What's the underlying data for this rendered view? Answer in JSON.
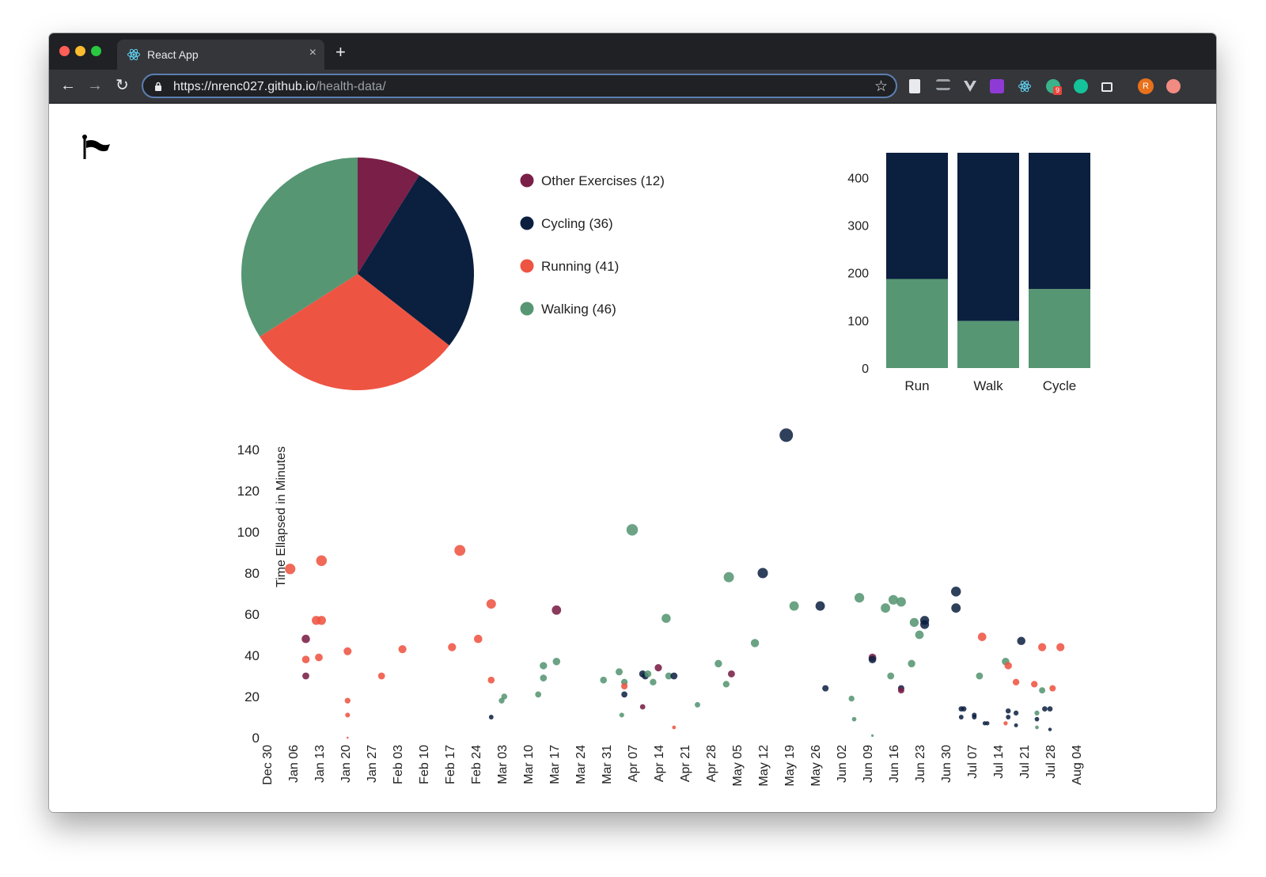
{
  "browser": {
    "tab_title": "React App",
    "tab_close": "×",
    "new_tab": "+",
    "url_host": "https://nrenc027.github.io",
    "url_path": "/health-data/",
    "back": "←",
    "forward": "→",
    "reload": "↻",
    "bookmark": "☆",
    "profile_initial": "R",
    "extension_badge": "9"
  },
  "colors": {
    "other": "#7a1f47",
    "cycling": "#0b1f3f",
    "running": "#ee5442",
    "walking": "#569673"
  },
  "icons": [
    "flag-icon",
    "react-icon",
    "lock-icon",
    "star-icon"
  ],
  "legend": [
    {
      "label": "Other Exercises (12)",
      "key": "other"
    },
    {
      "label": "Cycling (36)",
      "key": "cycling"
    },
    {
      "label": "Running (41)",
      "key": "running"
    },
    {
      "label": "Walking (46)",
      "key": "walking"
    }
  ],
  "chart_data": [
    {
      "type": "pie",
      "slices": [
        {
          "label": "Other Exercises",
          "value": 12,
          "color": "#7a1f47"
        },
        {
          "label": "Cycling",
          "value": 36,
          "color": "#0b1f3f"
        },
        {
          "label": "Running",
          "value": 41,
          "color": "#ee5442"
        },
        {
          "label": "Walking",
          "value": 46,
          "color": "#569673"
        }
      ]
    },
    {
      "type": "bar",
      "stacked": true,
      "categories": [
        "Run",
        "Walk",
        "Cycle"
      ],
      "series": [
        {
          "values": [
            187,
            99,
            166
          ],
          "color": "#569673"
        },
        {
          "values": [
            265,
            353,
            286
          ],
          "color": "#0b1f3f"
        }
      ],
      "yticks": [
        "0",
        "100",
        "200",
        "300",
        "400"
      ],
      "ylim": [
        0,
        452
      ]
    },
    {
      "type": "scatter",
      "ylabel": "Time Ellapsed in Minutes",
      "ylim": [
        0,
        140
      ],
      "yticks": [
        "0",
        "20",
        "40",
        "60",
        "80",
        "100",
        "120",
        "140"
      ],
      "xticks": [
        "Dec 30",
        "Jan 06",
        "Jan 13",
        "Jan 20",
        "Jan 27",
        "Feb 03",
        "Feb 10",
        "Feb 17",
        "Feb 24",
        "Mar 03",
        "Mar 10",
        "Mar 17",
        "Mar 24",
        "Mar 31",
        "Apr 07",
        "Apr 14",
        "Apr 21",
        "Apr 28",
        "May 05",
        "May 12",
        "May 19",
        "May 26",
        "Jun 02",
        "Jun 09",
        "Jun 16",
        "Jun 23",
        "Jun 30",
        "Jul 07",
        "Jul 14",
        "Jul 21",
        "Jul 28",
        "Aug 04"
      ],
      "points": [
        {
          "x": 0.9,
          "y": 82,
          "k": "running"
        },
        {
          "x": 1.5,
          "y": 48,
          "k": "other"
        },
        {
          "x": 1.5,
          "y": 38,
          "k": "running"
        },
        {
          "x": 1.5,
          "y": 30,
          "k": "other"
        },
        {
          "x": 1.9,
          "y": 57,
          "k": "running"
        },
        {
          "x": 2.0,
          "y": 39,
          "k": "running"
        },
        {
          "x": 2.1,
          "y": 57,
          "k": "running"
        },
        {
          "x": 2.1,
          "y": 86,
          "k": "running"
        },
        {
          "x": 3.1,
          "y": 42,
          "k": "running"
        },
        {
          "x": 3.1,
          "y": 18,
          "k": "running"
        },
        {
          "x": 3.1,
          "y": 11,
          "k": "running"
        },
        {
          "x": 3.1,
          "y": 0,
          "k": "running"
        },
        {
          "x": 4.4,
          "y": 30,
          "k": "running"
        },
        {
          "x": 5.2,
          "y": 43,
          "k": "running"
        },
        {
          "x": 7.1,
          "y": 44,
          "k": "running"
        },
        {
          "x": 7.4,
          "y": 91,
          "k": "running"
        },
        {
          "x": 8.1,
          "y": 48,
          "k": "running"
        },
        {
          "x": 8.6,
          "y": 28,
          "k": "running"
        },
        {
          "x": 8.6,
          "y": 10,
          "k": "cycling"
        },
        {
          "x": 8.6,
          "y": 65,
          "k": "running"
        },
        {
          "x": 9.0,
          "y": 18,
          "k": "walking"
        },
        {
          "x": 9.1,
          "y": 20,
          "k": "walking"
        },
        {
          "x": 10.4,
          "y": 21,
          "k": "walking"
        },
        {
          "x": 10.6,
          "y": 35,
          "k": "walking"
        },
        {
          "x": 10.6,
          "y": 29,
          "k": "walking"
        },
        {
          "x": 11.1,
          "y": 37,
          "k": "walking"
        },
        {
          "x": 11.1,
          "y": 62,
          "k": "other"
        },
        {
          "x": 12.9,
          "y": 28,
          "k": "walking"
        },
        {
          "x": 13.5,
          "y": 32,
          "k": "walking"
        },
        {
          "x": 13.6,
          "y": 11,
          "k": "walking"
        },
        {
          "x": 13.7,
          "y": 27,
          "k": "walking"
        },
        {
          "x": 13.7,
          "y": 25,
          "k": "running"
        },
        {
          "x": 13.7,
          "y": 21,
          "k": "cycling"
        },
        {
          "x": 14.0,
          "y": 101,
          "k": "walking"
        },
        {
          "x": 14.4,
          "y": 31,
          "k": "cycling"
        },
        {
          "x": 14.5,
          "y": 30,
          "k": "cycling"
        },
        {
          "x": 14.6,
          "y": 31,
          "k": "walking"
        },
        {
          "x": 14.4,
          "y": 15,
          "k": "other"
        },
        {
          "x": 14.8,
          "y": 27,
          "k": "walking"
        },
        {
          "x": 15.0,
          "y": 34,
          "k": "other"
        },
        {
          "x": 15.3,
          "y": 58,
          "k": "walking"
        },
        {
          "x": 15.4,
          "y": 30,
          "k": "walking"
        },
        {
          "x": 15.6,
          "y": 30,
          "k": "cycling"
        },
        {
          "x": 15.6,
          "y": 5,
          "k": "running"
        },
        {
          "x": 16.5,
          "y": 16,
          "k": "walking"
        },
        {
          "x": 17.3,
          "y": 36,
          "k": "walking"
        },
        {
          "x": 17.6,
          "y": 26,
          "k": "walking"
        },
        {
          "x": 17.7,
          "y": 78,
          "k": "walking"
        },
        {
          "x": 17.8,
          "y": 31,
          "k": "other"
        },
        {
          "x": 18.7,
          "y": 46,
          "k": "walking"
        },
        {
          "x": 19.0,
          "y": 80,
          "k": "cycling"
        },
        {
          "x": 19.9,
          "y": 147,
          "k": "cycling"
        },
        {
          "x": 20.2,
          "y": 64,
          "k": "walking"
        },
        {
          "x": 21.2,
          "y": 64,
          "k": "cycling"
        },
        {
          "x": 21.4,
          "y": 24,
          "k": "cycling"
        },
        {
          "x": 22.4,
          "y": 19,
          "k": "walking"
        },
        {
          "x": 22.5,
          "y": 9,
          "k": "walking"
        },
        {
          "x": 22.7,
          "y": 68,
          "k": "walking"
        },
        {
          "x": 23.2,
          "y": 39,
          "k": "other"
        },
        {
          "x": 23.2,
          "y": 38,
          "k": "cycling"
        },
        {
          "x": 23.2,
          "y": 1,
          "k": "walking"
        },
        {
          "x": 23.7,
          "y": 63,
          "k": "walking"
        },
        {
          "x": 23.9,
          "y": 30,
          "k": "walking"
        },
        {
          "x": 24.0,
          "y": 67,
          "k": "walking"
        },
        {
          "x": 24.3,
          "y": 66,
          "k": "walking"
        },
        {
          "x": 24.3,
          "y": 24,
          "k": "cycling"
        },
        {
          "x": 24.3,
          "y": 23,
          "k": "other"
        },
        {
          "x": 24.7,
          "y": 36,
          "k": "walking"
        },
        {
          "x": 24.8,
          "y": 56,
          "k": "walking"
        },
        {
          "x": 25.0,
          "y": 50,
          "k": "walking"
        },
        {
          "x": 25.2,
          "y": 57,
          "k": "cycling"
        },
        {
          "x": 25.2,
          "y": 55,
          "k": "cycling"
        },
        {
          "x": 26.4,
          "y": 71,
          "k": "cycling"
        },
        {
          "x": 26.4,
          "y": 63,
          "k": "cycling"
        },
        {
          "x": 26.6,
          "y": 14,
          "k": "cycling"
        },
        {
          "x": 26.7,
          "y": 14,
          "k": "cycling"
        },
        {
          "x": 26.6,
          "y": 10,
          "k": "cycling"
        },
        {
          "x": 27.1,
          "y": 11,
          "k": "cycling"
        },
        {
          "x": 27.1,
          "y": 10,
          "k": "cycling"
        },
        {
          "x": 27.3,
          "y": 30,
          "k": "walking"
        },
        {
          "x": 27.4,
          "y": 49,
          "k": "running"
        },
        {
          "x": 27.5,
          "y": 7,
          "k": "cycling"
        },
        {
          "x": 27.6,
          "y": 7,
          "k": "cycling"
        },
        {
          "x": 28.3,
          "y": 37,
          "k": "walking"
        },
        {
          "x": 28.4,
          "y": 35,
          "k": "running"
        },
        {
          "x": 28.4,
          "y": 13,
          "k": "cycling"
        },
        {
          "x": 28.4,
          "y": 10,
          "k": "cycling"
        },
        {
          "x": 28.3,
          "y": 7,
          "k": "running"
        },
        {
          "x": 28.7,
          "y": 27,
          "k": "running"
        },
        {
          "x": 28.7,
          "y": 12,
          "k": "cycling"
        },
        {
          "x": 28.7,
          "y": 6,
          "k": "cycling"
        },
        {
          "x": 28.9,
          "y": 47,
          "k": "cycling"
        },
        {
          "x": 29.4,
          "y": 26,
          "k": "running"
        },
        {
          "x": 29.5,
          "y": 12,
          "k": "walking"
        },
        {
          "x": 29.5,
          "y": 9,
          "k": "cycling"
        },
        {
          "x": 29.5,
          "y": 5,
          "k": "walking"
        },
        {
          "x": 29.7,
          "y": 23,
          "k": "walking"
        },
        {
          "x": 29.7,
          "y": 44,
          "k": "running"
        },
        {
          "x": 29.8,
          "y": 14,
          "k": "cycling"
        },
        {
          "x": 30.0,
          "y": 14,
          "k": "cycling"
        },
        {
          "x": 30.0,
          "y": 4,
          "k": "cycling"
        },
        {
          "x": 30.1,
          "y": 24,
          "k": "running"
        },
        {
          "x": 30.4,
          "y": 44,
          "k": "running"
        }
      ]
    }
  ]
}
